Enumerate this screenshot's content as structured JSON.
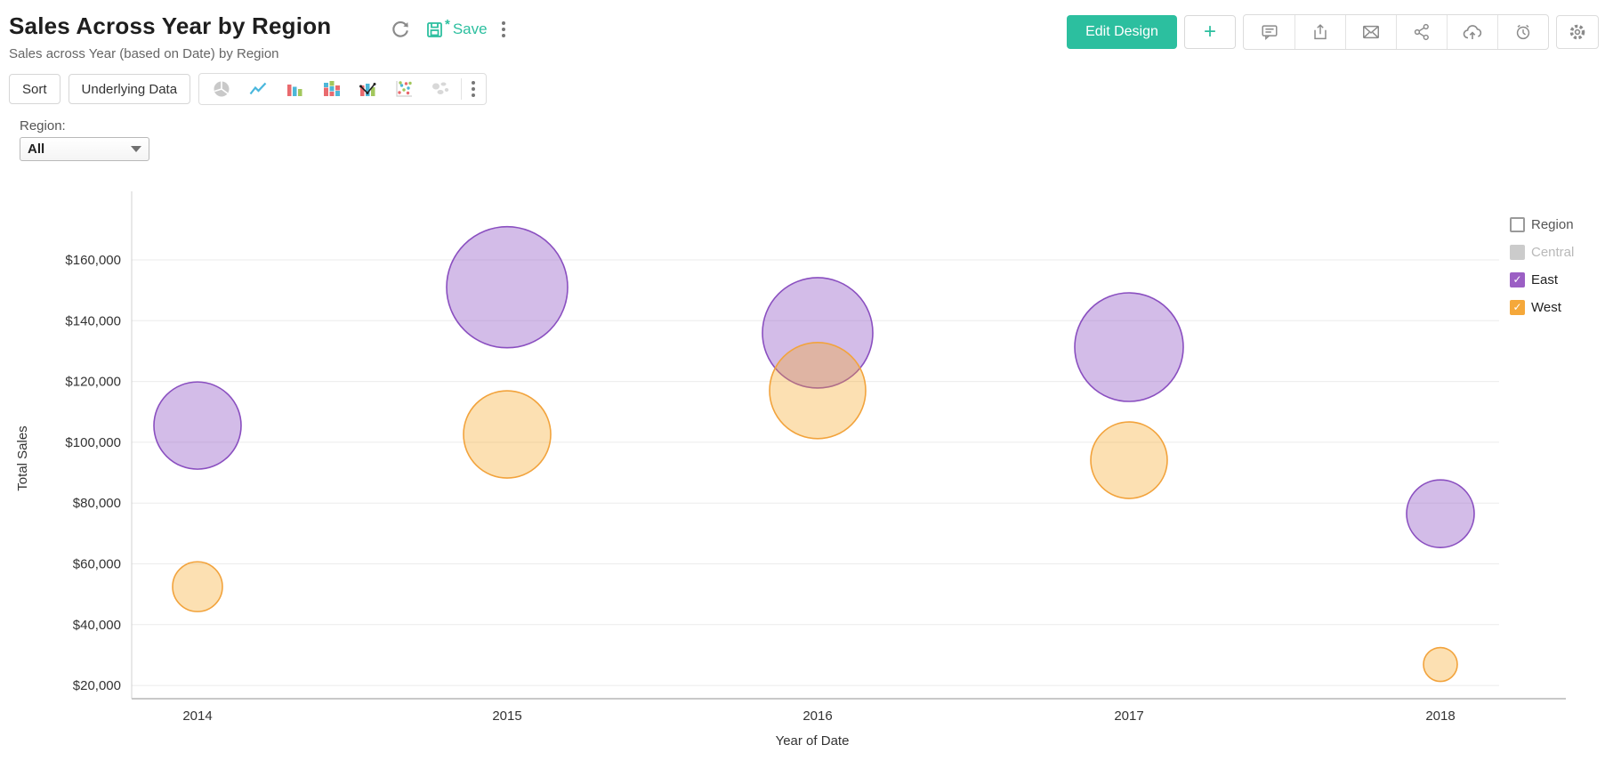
{
  "header": {
    "title": "Sales Across Year by Region",
    "subtitle": "Sales across Year (based on Date) by Region",
    "save_label": "Save",
    "edit_design_label": "Edit Design",
    "plus_label": "+",
    "accent_color": "#2cbf9f"
  },
  "toolbar": {
    "sort_label": "Sort",
    "underlying_data_label": "Underlying Data",
    "chart_types": [
      "pie",
      "line",
      "bar",
      "stacked-bar",
      "combo",
      "scatter",
      "map"
    ]
  },
  "filter": {
    "label": "Region:",
    "value": "All"
  },
  "legend": {
    "title": "Region",
    "items": [
      {
        "label": "Central",
        "checked": false,
        "color": "#cbcbcb",
        "text_color": "#b9b9b9"
      },
      {
        "label": "East",
        "checked": true,
        "color": "#9b5fc4",
        "text_color": "#222222"
      },
      {
        "label": "West",
        "checked": true,
        "color": "#f5a83a",
        "text_color": "#222222"
      }
    ]
  },
  "chart_data": {
    "type": "scatter",
    "subtype": "bubble",
    "title": "Sales Across Year by Region",
    "xlabel": "Year of Date",
    "ylabel": "Total Sales",
    "categories": [
      "2014",
      "2015",
      "2016",
      "2017",
      "2018"
    ],
    "y_ticks": [
      20000,
      40000,
      60000,
      80000,
      100000,
      120000,
      140000,
      160000
    ],
    "ylim": [
      20000,
      160000
    ],
    "tick_prefix": "$",
    "grid": "horizontal",
    "legend_position": "right",
    "hidden_series": [
      "Central"
    ],
    "series": [
      {
        "name": "East",
        "color": "#9b5fc4",
        "fill": "rgba(150,95,200,0.42)",
        "stroke": "#8a4fc0",
        "points": [
          {
            "x": "2014",
            "value": 105500,
            "r": 49
          },
          {
            "x": "2015",
            "value": 151000,
            "r": 68
          },
          {
            "x": "2016",
            "value": 136000,
            "r": 62
          },
          {
            "x": "2017",
            "value": 131300,
            "r": 61
          },
          {
            "x": "2018",
            "value": 76500,
            "r": 38
          }
        ]
      },
      {
        "name": "West",
        "color": "#f5a83a",
        "fill": "rgba(246,166,35,0.35)",
        "stroke": "#f2a33c",
        "points": [
          {
            "x": "2014",
            "value": 52500,
            "r": 28
          },
          {
            "x": "2015",
            "value": 102600,
            "r": 49
          },
          {
            "x": "2016",
            "value": 117000,
            "r": 54
          },
          {
            "x": "2017",
            "value": 94100,
            "r": 43
          },
          {
            "x": "2018",
            "value": 26900,
            "r": 19
          }
        ]
      }
    ]
  }
}
